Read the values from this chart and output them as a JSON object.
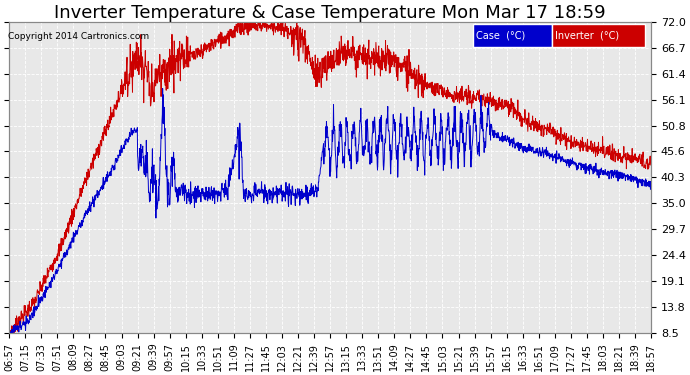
{
  "title": "Inverter Temperature & Case Temperature Mon Mar 17 18:59",
  "copyright": "Copyright 2014 Cartronics.com",
  "ylabel_right_ticks": [
    8.5,
    13.8,
    19.1,
    24.4,
    29.7,
    35.0,
    40.3,
    45.6,
    50.8,
    56.1,
    61.4,
    66.7,
    72.0
  ],
  "ylim": [
    8.5,
    72.0
  ],
  "legend_case_label": "Case  (°C)",
  "legend_inverter_label": "Inverter  (°C)",
  "case_color": "#0000cc",
  "inverter_color": "#cc0000",
  "legend_case_bg": "#0000cc",
  "legend_inverter_bg": "#cc0000",
  "bg_color": "#ffffff",
  "plot_bg_color": "#e8e8e8",
  "grid_color": "#ffffff",
  "title_fontsize": 13,
  "tick_fontsize": 8,
  "x_tick_labels": [
    "06:57",
    "07:15",
    "07:33",
    "07:51",
    "08:09",
    "08:27",
    "08:45",
    "09:03",
    "09:21",
    "09:39",
    "09:57",
    "10:15",
    "10:33",
    "10:51",
    "11:09",
    "11:27",
    "11:45",
    "12:03",
    "12:21",
    "12:39",
    "12:57",
    "13:15",
    "13:33",
    "13:51",
    "14:09",
    "14:27",
    "14:45",
    "15:03",
    "15:21",
    "15:39",
    "15:57",
    "16:15",
    "16:33",
    "16:51",
    "17:09",
    "17:27",
    "17:45",
    "18:03",
    "18:21",
    "18:39",
    "18:57"
  ]
}
